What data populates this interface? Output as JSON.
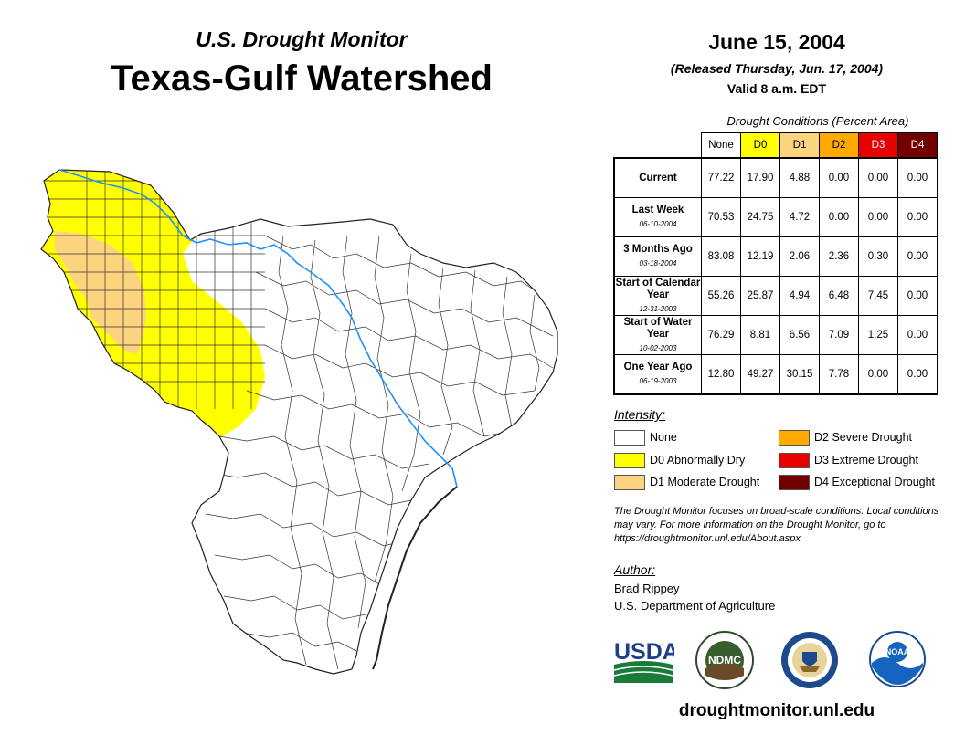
{
  "header": {
    "subtitle": "U.S. Drought Monitor",
    "title": "Texas-Gulf Watershed",
    "date": "June 15, 2004",
    "released": "(Released Thursday, Jun. 17, 2004)",
    "valid": "Valid 8 a.m. EDT"
  },
  "table": {
    "caption": "Drought Conditions (Percent Area)",
    "columns": [
      {
        "label": "None",
        "color": "#ffffff"
      },
      {
        "label": "D0",
        "color": "#ffff00"
      },
      {
        "label": "D1",
        "color": "#fcd37f"
      },
      {
        "label": "D2",
        "color": "#ffaa00"
      },
      {
        "label": "D3",
        "color": "#e60000"
      },
      {
        "label": "D4",
        "color": "#730000"
      }
    ],
    "rows": [
      {
        "label": "Current",
        "date": "",
        "values": [
          "77.22",
          "17.90",
          "4.88",
          "0.00",
          "0.00",
          "0.00"
        ]
      },
      {
        "label": "Last Week",
        "date": "06-10-2004",
        "values": [
          "70.53",
          "24.75",
          "4.72",
          "0.00",
          "0.00",
          "0.00"
        ]
      },
      {
        "label": "3 Months Ago",
        "date": "03-18-2004",
        "values": [
          "83.08",
          "12.19",
          "2.06",
          "2.36",
          "0.30",
          "0.00"
        ]
      },
      {
        "label": "Start of Calendar Year",
        "date": "12-31-2003",
        "values": [
          "55.26",
          "25.87",
          "4.94",
          "6.48",
          "7.45",
          "0.00"
        ]
      },
      {
        "label": "Start of Water Year",
        "date": "10-02-2003",
        "values": [
          "76.29",
          "8.81",
          "6.56",
          "7.09",
          "1.25",
          "0.00"
        ]
      },
      {
        "label": "One Year Ago",
        "date": "06-19-2003",
        "values": [
          "12.80",
          "49.27",
          "30.15",
          "7.78",
          "0.00",
          "0.00"
        ]
      }
    ]
  },
  "legend": {
    "title": "Intensity:",
    "items": [
      {
        "label": "None",
        "color": "#ffffff"
      },
      {
        "label": "D0 Abnormally Dry",
        "color": "#ffff00"
      },
      {
        "label": "D1 Moderate Drought",
        "color": "#fcd37f"
      },
      {
        "label": "D2 Severe Drought",
        "color": "#ffaa00"
      },
      {
        "label": "D3 Extreme Drought",
        "color": "#e60000"
      },
      {
        "label": "D4 Exceptional Drought",
        "color": "#730000"
      }
    ]
  },
  "note": "The Drought Monitor focuses on broad-scale conditions. Local conditions may vary. For more information on the Drought Monitor, go to https://droughtmonitor.unl.edu/About.aspx",
  "author": {
    "label": "Author:",
    "name": "Brad Rippey",
    "org": "U.S. Department of Agriculture"
  },
  "logos": {
    "usda": "USDA",
    "ndmc": "NDMC",
    "noaa": "NOAA"
  },
  "website": "droughtmonitor.unl.edu",
  "colors": {
    "river": "#1e90ff",
    "county_line": "#333333"
  }
}
